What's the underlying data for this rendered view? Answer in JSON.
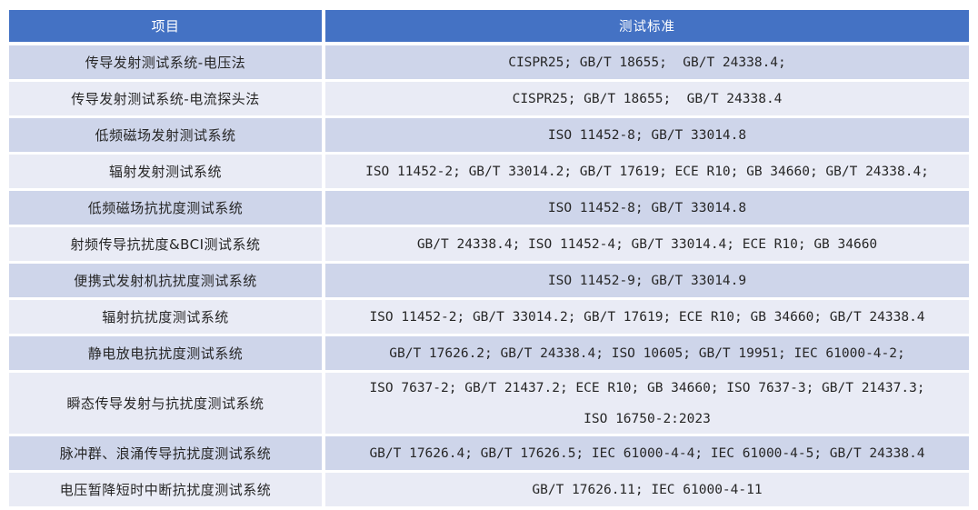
{
  "colors": {
    "header_bg": "#4472C4",
    "header_text": "#FFFFFF",
    "row_band_dark": "#CED5EA",
    "row_band_light": "#E9EBF5",
    "body_text": "#262626",
    "page_bg": "#FFFFFF"
  },
  "table": {
    "columns": [
      {
        "key": "item",
        "label": "项目"
      },
      {
        "key": "standard",
        "label": "测试标准"
      }
    ],
    "rows": [
      {
        "item": "传导发射测试系统-电压法",
        "standard": "CISPR25; GB/T 18655;  GB/T 24338.4;"
      },
      {
        "item": "传导发射测试系统-电流探头法",
        "standard": "CISPR25; GB/T 18655;  GB/T 24338.4"
      },
      {
        "item": "低频磁场发射测试系统",
        "standard": "ISO 11452-8; GB/T 33014.8"
      },
      {
        "item": "辐射发射测试系统",
        "standard": "ISO 11452-2; GB/T 33014.2; GB/T 17619; ECE R10; GB 34660; GB/T 24338.4;"
      },
      {
        "item": "低频磁场抗扰度测试系统",
        "standard": "ISO 11452-8; GB/T 33014.8"
      },
      {
        "item": "射频传导抗扰度&BCI测试系统",
        "standard": "GB/T 24338.4; ISO 11452-4; GB/T 33014.4; ECE R10; GB 34660"
      },
      {
        "item": "便携式发射机抗扰度测试系统",
        "standard": "ISO 11452-9; GB/T 33014.9"
      },
      {
        "item": "辐射抗扰度测试系统",
        "standard": "ISO 11452-2; GB/T 33014.2; GB/T 17619; ECE R10; GB 34660; GB/T 24338.4"
      },
      {
        "item": "静电放电抗扰度测试系统",
        "standard": "GB/T 17626.2; GB/T 24338.4; ISO 10605; GB/T 19951; IEC 61000-4-2;"
      },
      {
        "item": "瞬态传导发射与抗扰度测试系统",
        "standard": "ISO 7637-2; GB/T 21437.2; ECE R10; GB 34660; ISO 7637-3; GB/T 21437.3;\nISO 16750-2:2023"
      },
      {
        "item": "脉冲群、浪涌传导抗扰度测试系统",
        "standard": "GB/T 17626.4; GB/T 17626.5; IEC 61000-4-4; IEC 61000-4-5; GB/T 24338.4"
      },
      {
        "item": "电压暂降短时中断抗扰度测试系统",
        "standard": "GB/T 17626.11; IEC 61000-4-11"
      }
    ]
  }
}
